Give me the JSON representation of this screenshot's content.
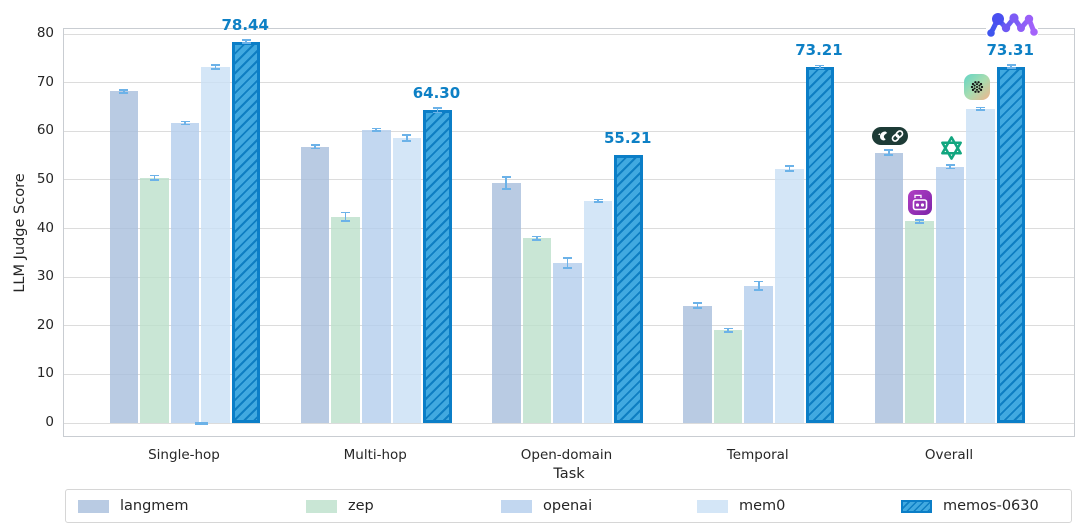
{
  "chart_data": {
    "type": "bar",
    "title": "",
    "xlabel": "Task",
    "ylabel": "LLM Judge Score",
    "ylim": [
      0,
      80
    ],
    "yticks": [
      0,
      10,
      20,
      30,
      40,
      50,
      60,
      70,
      80
    ],
    "grid": true,
    "legend_position": "bottom",
    "categories": [
      "Single-hop",
      "Multi-hop",
      "Open-domain",
      "Temporal",
      "Overall"
    ],
    "series": [
      {
        "name": "langmem",
        "color": "rgba(168,190,220,0.8)",
        "legend_color": "#b9cbe3",
        "values": [
          68.2,
          56.8,
          49.4,
          24.1,
          55.6
        ],
        "errors": [
          0.3,
          0.35,
          1.2,
          0.5,
          0.5
        ]
      },
      {
        "name": "zep",
        "color": "rgba(188,224,203,0.8)",
        "legend_color": "#c9e6d5",
        "values": [
          50.4,
          42.4,
          38.0,
          19.1,
          41.5
        ],
        "errors": [
          0.5,
          0.9,
          0.35,
          0.35,
          0.3
        ]
      },
      {
        "name": "openai",
        "color": "rgba(179,205,236,0.8)",
        "legend_color": "#c2d7f0",
        "values": [
          61.7,
          60.3,
          32.9,
          28.2,
          52.7
        ],
        "errors": [
          0.3,
          0.25,
          1.0,
          0.9,
          0.35
        ]
      },
      {
        "name": "mem0",
        "color": "rgba(201,224,245,0.8)",
        "legend_color": "#d4e6f7",
        "values": [
          73.2,
          58.6,
          45.7,
          52.3,
          64.6
        ],
        "errors": [
          0.4,
          0.65,
          0.25,
          0.5,
          0.3
        ]
      },
      {
        "name": "memos-0630",
        "hatch": true,
        "color": "#41a9e0",
        "hatch_color": "#0e7ec2",
        "border_color": "#0b7ec7",
        "values": [
          78.44,
          64.3,
          55.21,
          73.21,
          73.31
        ],
        "errors": [
          0.35,
          0.45,
          0,
          0.3,
          0.25
        ],
        "annotations": [
          "78.44",
          "64.30",
          "55.21",
          "73.21",
          "73.31"
        ]
      }
    ],
    "annotation_color": "#0d80c5",
    "error_bar_color": "#6cb2e8",
    "stray_baseline_tick": {
      "category": "Single-hop",
      "series": "mem0",
      "value": 0
    }
  },
  "icons": {
    "langchain": "langchain-parrot-chain-icon",
    "zep": "zep-robot-icon",
    "openai": "openai-logo-icon",
    "mem0": "mem0-dotted-sphere-icon",
    "memos": "memos-network-logo"
  }
}
